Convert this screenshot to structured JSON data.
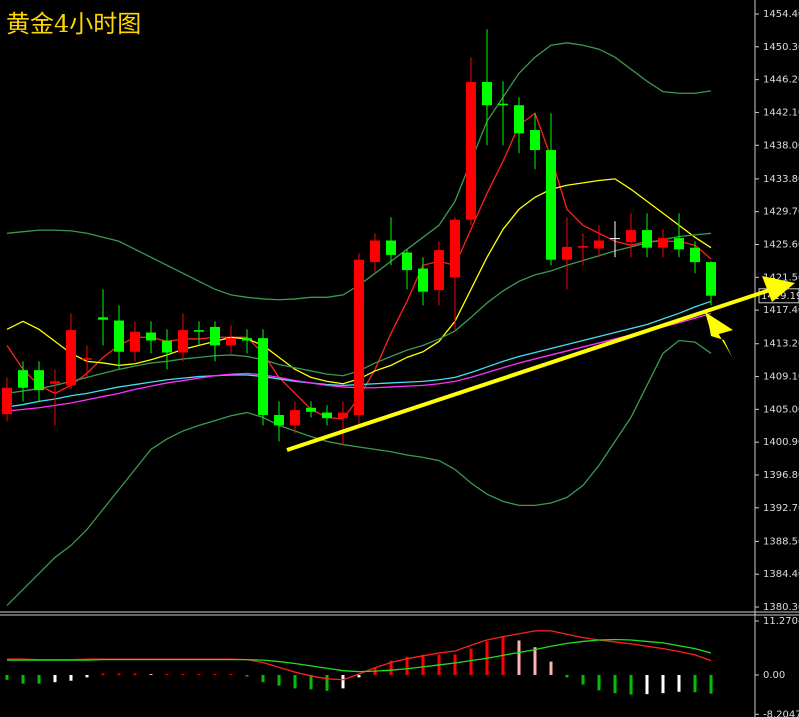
{
  "chart_data": [
    {
      "type": "candlestick",
      "title": "黄金4小时图",
      "open": [
        1404.4,
        1409.9,
        1409.9,
        1408.2,
        1408.0,
        1411.2,
        1416.5,
        1416.1,
        1412.2,
        1414.6,
        1413.6,
        1412.1,
        1414.9,
        1415.3,
        1413.0,
        1413.9,
        1413.9,
        1404.3,
        1403.0,
        1405.2,
        1404.6,
        1403.9,
        1404.3,
        1423.4,
        1426.1,
        1424.6,
        1422.6,
        1419.9,
        1421.5,
        1428.7,
        1445.9,
        1443.2,
        1443.0,
        1439.9,
        1437.4,
        1423.7,
        1425.2,
        1425.1,
        1426.4,
        1425.9,
        1427.4,
        1425.2,
        1426.4,
        1425.2,
        1423.4
      ],
      "high": [
        1409,
        1411,
        1411,
        1410,
        1417,
        1413,
        1420,
        1418,
        1416,
        1416,
        1415,
        1417,
        1416,
        1416,
        1415.5,
        1415,
        1415,
        1406,
        1406,
        1406,
        1405.5,
        1406,
        1424.5,
        1427,
        1429,
        1425,
        1424,
        1426,
        1429,
        1449,
        1452.5,
        1446,
        1444,
        1442,
        1442,
        1429,
        1427,
        1428,
        1428.5,
        1429.5,
        1429.5,
        1427.5,
        1429.5,
        1426,
        1423.5
      ],
      "low": [
        1403.5,
        1406,
        1406,
        1403,
        1407.5,
        1409,
        1413,
        1410,
        1411,
        1412,
        1410,
        1411,
        1413,
        1411,
        1412,
        1412,
        1403,
        1401,
        1402,
        1404,
        1403,
        1400.6,
        1403,
        1422,
        1423,
        1420,
        1418,
        1418,
        1415,
        1428,
        1438,
        1438,
        1437,
        1435,
        1423,
        1420,
        1423,
        1424,
        1424,
        1424,
        1424,
        1424,
        1424,
        1422,
        1418
      ],
      "close": [
        1407.7,
        1407.7,
        1407.4,
        1408.5,
        1414.9,
        1411.4,
        1416.2,
        1412.2,
        1414.7,
        1413.6,
        1412.1,
        1414.9,
        1414.7,
        1413.0,
        1413.9,
        1413.6,
        1404.3,
        1403.0,
        1404.9,
        1404.7,
        1403.9,
        1404.6,
        1423.7,
        1426.1,
        1424.3,
        1422.4,
        1419.7,
        1424.9,
        1428.7,
        1445.9,
        1443.0,
        1443.0,
        1439.5,
        1437.4,
        1423.7,
        1425.3,
        1425.4,
        1426.1,
        1426.4,
        1427.4,
        1425.2,
        1426.4,
        1425.0,
        1423.4,
        1419.2
      ],
      "up_color": "#ff0000",
      "down_color": "#00ff00",
      "series": [
        {
          "color": "#ff2020",
          "values": [
            1413,
            1410,
            1408,
            1407,
            1408,
            1409.5,
            1411.5,
            1413,
            1414,
            1414,
            1413.5,
            1413.8,
            1413.8,
            1414,
            1414,
            1414,
            1412,
            1409,
            1407,
            1405,
            1404,
            1403.8,
            1406.5,
            1410,
            1414.5,
            1418.5,
            1423,
            1423.5,
            1423,
            1427.5,
            1432,
            1436,
            1440.5,
            1442,
            1436.5,
            1430,
            1428,
            1427,
            1426,
            1425.5,
            1426,
            1426,
            1426,
            1425.5,
            1423.8
          ]
        },
        {
          "color": "#ffff00",
          "values": [
            1415,
            1416,
            1415,
            1413.5,
            1412,
            1411,
            1410.8,
            1410.5,
            1410.7,
            1411.2,
            1411.8,
            1412.5,
            1413,
            1413.5,
            1414,
            1413.8,
            1413,
            1411.5,
            1410,
            1409,
            1408.5,
            1408.2,
            1408.8,
            1409.8,
            1410.5,
            1411.5,
            1412.2,
            1413.5,
            1416,
            1420,
            1424,
            1427.5,
            1430,
            1431.5,
            1432.5,
            1433,
            1433.3,
            1433.6,
            1433.8,
            1432.5,
            1431,
            1429.5,
            1428,
            1426.5,
            1425.2
          ]
        },
        {
          "color": "#40e0f0",
          "values": [
            1405.3,
            1405.6,
            1406,
            1406.3,
            1406.7,
            1407,
            1407.4,
            1407.8,
            1408.1,
            1408.4,
            1408.7,
            1408.9,
            1409.1,
            1409.2,
            1409.3,
            1409.3,
            1409.1,
            1408.8,
            1408.5,
            1408.3,
            1408.1,
            1408,
            1408.1,
            1408.2,
            1408.3,
            1408.4,
            1408.5,
            1408.7,
            1409,
            1409.6,
            1410.3,
            1411,
            1411.6,
            1412.1,
            1412.6,
            1413.1,
            1413.6,
            1414.1,
            1414.6,
            1415.1,
            1415.6,
            1416.3,
            1417,
            1417.8,
            1418.5
          ]
        },
        {
          "color": "#ff30ff",
          "values": [
            1404.8,
            1405,
            1405.2,
            1405.5,
            1405.8,
            1406.2,
            1406.6,
            1407,
            1407.5,
            1407.9,
            1408.3,
            1408.6,
            1408.9,
            1409.2,
            1409.4,
            1409.5,
            1409.3,
            1409,
            1408.6,
            1408.3,
            1408,
            1407.8,
            1407.7,
            1407.7,
            1407.8,
            1407.9,
            1408,
            1408.2,
            1408.5,
            1409,
            1409.6,
            1410.2,
            1410.8,
            1411.3,
            1411.8,
            1412.3,
            1412.8,
            1413.3,
            1413.8,
            1414.3,
            1414.8,
            1415.3,
            1415.8,
            1416.4,
            1417
          ]
        },
        {
          "color": "#3a9a50",
          "values": [
            1427,
            1427.2,
            1427.4,
            1427.4,
            1427.3,
            1427,
            1426.5,
            1426,
            1425,
            1424,
            1423,
            1422,
            1421,
            1420,
            1419.3,
            1419,
            1418.8,
            1418.7,
            1418.8,
            1419,
            1419,
            1419.3,
            1420.5,
            1422,
            1423.5,
            1425,
            1426.5,
            1428,
            1431,
            1436,
            1441,
            1444,
            1447,
            1449,
            1450.5,
            1450.8,
            1450.5,
            1450,
            1449,
            1447.5,
            1446,
            1444.7,
            1444.5,
            1444.5,
            1444.8
          ]
        },
        {
          "color": "#3a9a50",
          "values": [
            1407,
            1407.3,
            1407.6,
            1408,
            1408.5,
            1409,
            1409.5,
            1410,
            1410.4,
            1410.8,
            1411,
            1411.3,
            1411.5,
            1411.7,
            1411.8,
            1411.6,
            1411.2,
            1410.6,
            1410.2,
            1409.8,
            1409.4,
            1409.2,
            1409.8,
            1410.8,
            1411.6,
            1412.4,
            1413,
            1413.8,
            1414.8,
            1416.5,
            1418.3,
            1419.8,
            1421,
            1421.8,
            1422.3,
            1423,
            1423.6,
            1424.2,
            1424.8,
            1425.3,
            1425.8,
            1426.2,
            1426.6,
            1426.8,
            1427
          ]
        },
        {
          "color": "#3a9a50",
          "values": [
            1380.5,
            1382.5,
            1384.5,
            1386.5,
            1388,
            1390,
            1392.5,
            1395,
            1397.5,
            1400,
            1401.3,
            1402.3,
            1403,
            1403.6,
            1404.2,
            1404.6,
            1404,
            1403,
            1402.3,
            1401.6,
            1401,
            1400.6,
            1400.3,
            1400,
            1399.7,
            1399.3,
            1399,
            1398.6,
            1397.5,
            1395.8,
            1394.4,
            1393.5,
            1393,
            1393,
            1393.3,
            1394,
            1395.5,
            1398,
            1401,
            1404,
            1408,
            1412,
            1413.6,
            1413.4,
            1412
          ]
        }
      ],
      "last_price": 1419.19,
      "ylim": [
        1379.68,
        1456.15
      ],
      "yticks": [
        {
          "value": 1454.4,
          "label": "1454.40"
        },
        {
          "value": 1450.3,
          "label": "1450.30"
        },
        {
          "value": 1446.2,
          "label": "1446.20"
        },
        {
          "value": 1442.1,
          "label": "1442.10"
        },
        {
          "value": 1438,
          "label": "1438.00"
        },
        {
          "value": 1433.8,
          "label": "1433.80"
        },
        {
          "value": 1429.7,
          "label": "1429.70"
        },
        {
          "value": 1425.6,
          "label": "1425.60"
        },
        {
          "value": 1421.5,
          "label": "1421.50"
        },
        {
          "value": 1417.4,
          "label": "1417.40"
        },
        {
          "value": 1413.2,
          "label": "1413.20"
        },
        {
          "value": 1409.1,
          "label": "1409.10"
        },
        {
          "value": 1405,
          "label": "1405.00"
        },
        {
          "value": 1400.9,
          "label": "1400.90"
        },
        {
          "value": 1396.8,
          "label": "1396.80"
        },
        {
          "value": 1392.7,
          "label": "1392.70"
        },
        {
          "value": 1388.5,
          "label": "1388.50"
        },
        {
          "value": 1384.4,
          "label": "1384.40"
        },
        {
          "value": 1380.3,
          "label": "1380.30"
        }
      ]
    },
    {
      "type": "macd",
      "values": [
        -1,
        -1.8,
        -1.8,
        -1.5,
        -1.2,
        -0.5,
        0.3,
        0.3,
        0.3,
        0.2,
        0.2,
        0.2,
        0.2,
        0.2,
        0.2,
        -0.3,
        -1.5,
        -2.2,
        -2.8,
        -3,
        -3.3,
        -2.8,
        -0.5,
        1.5,
        3,
        3.8,
        4.2,
        4.3,
        4.3,
        5.5,
        7,
        8,
        7.2,
        5.8,
        2.8,
        -0.5,
        -2,
        -3.2,
        -3.8,
        -4.1,
        -4,
        -3.8,
        -3.5,
        -3.6,
        -3.9
      ],
      "up_color": "#ff0000",
      "up_fading_color": "#ffb0b0",
      "down_color": "#00c000",
      "down_fading_color": "#ffffff",
      "series": [
        {
          "color": "#ff2020",
          "values": [
            3.3,
            3.3,
            3.2,
            3.2,
            3.2,
            3.3,
            3.3,
            3.3,
            3.3,
            3.3,
            3.3,
            3.3,
            3.3,
            3.3,
            3.3,
            3.2,
            2.6,
            1.6,
            0.6,
            -0.2,
            -0.8,
            -1,
            0.2,
            1.5,
            2.6,
            3.4,
            4,
            4.6,
            5,
            6.2,
            7.3,
            8,
            8.6,
            9.2,
            9.2,
            8.5,
            7.8,
            7.3,
            6.9,
            6.5,
            6,
            5.5,
            4.9,
            4.2,
            3
          ]
        },
        {
          "color": "#20e020",
          "values": [
            3.1,
            3.1,
            3.1,
            3.1,
            3.1,
            3.1,
            3.2,
            3.2,
            3.2,
            3.2,
            3.2,
            3.2,
            3.2,
            3.2,
            3.2,
            3.2,
            3.1,
            2.8,
            2.4,
            1.9,
            1.4,
            0.9,
            0.7,
            0.8,
            1,
            1.3,
            1.7,
            2.1,
            2.5,
            3,
            3.5,
            4.1,
            4.7,
            5.3,
            6,
            6.6,
            7,
            7.3,
            7.4,
            7.3,
            7,
            6.7,
            6.1,
            5.5,
            4.6
          ]
        }
      ],
      "ylim": [
        -8.77,
        12.52
      ],
      "yticks": [
        11.2704,
        {
          "value": 0,
          "label": "0.00"
        },
        -8.2047
      ]
    }
  ]
}
